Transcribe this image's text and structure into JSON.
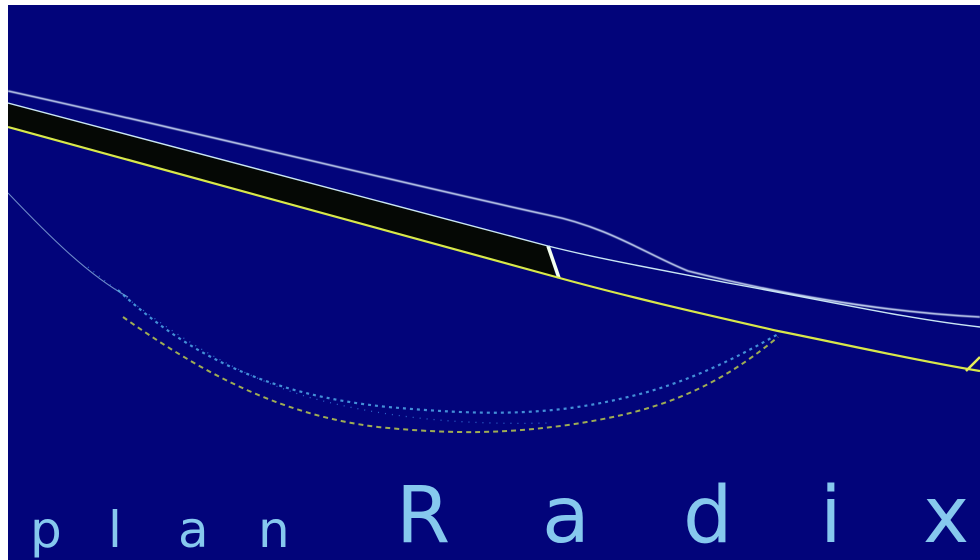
{
  "logo": {
    "prefix": "plan",
    "name": "Radix",
    "prefix_letters": [
      "p",
      "l",
      "a",
      "n"
    ],
    "name_letters": [
      "R",
      "a",
      "d",
      "i",
      "x"
    ]
  },
  "colors": {
    "background": "#02047a",
    "text": "#86c8ee",
    "band_fill": "#050805",
    "band_edge": "#d8e84a",
    "edge_line": "#dff0ff"
  }
}
